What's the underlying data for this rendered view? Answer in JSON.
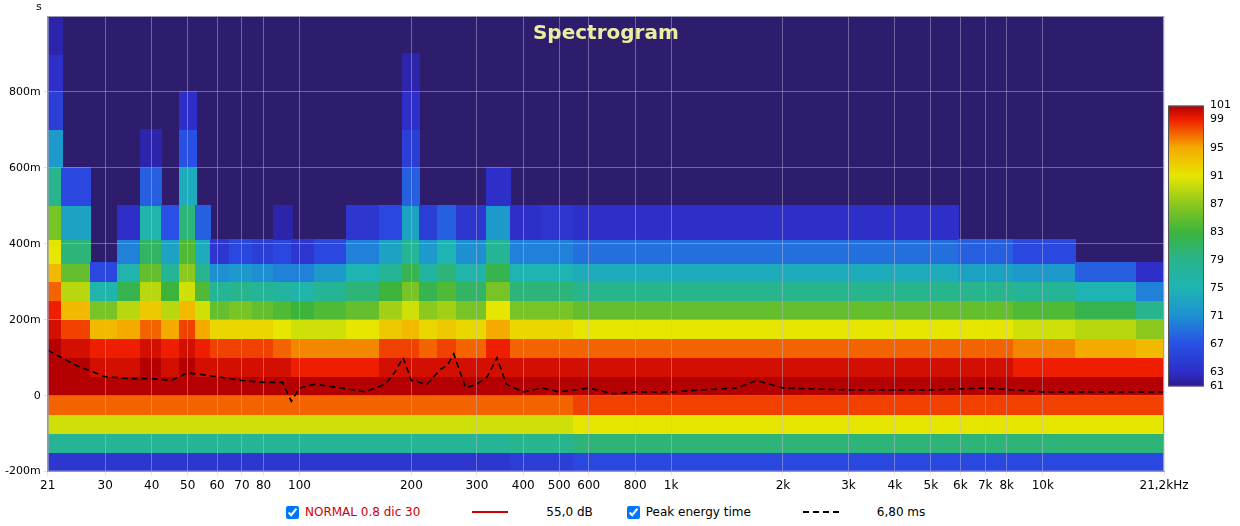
{
  "chart_data": {
    "type": "heatmap",
    "title": "Spectrogram",
    "ylabel": "s",
    "log": "x",
    "grid": true,
    "legend": "bottom",
    "xlim": [
      21,
      21200
    ],
    "xticks": [
      21,
      30,
      40,
      50,
      60,
      70,
      80,
      100,
      200,
      300,
      400,
      500,
      600,
      800,
      {
        "value": 1000,
        "label": "1k"
      },
      {
        "value": 2000,
        "label": "2k"
      },
      {
        "value": 3000,
        "label": "3k"
      },
      {
        "value": 4000,
        "label": "4k"
      },
      {
        "value": 5000,
        "label": "5k"
      },
      {
        "value": 6000,
        "label": "6k"
      },
      {
        "value": 7000,
        "label": "7k"
      },
      {
        "value": 8000,
        "label": "8k"
      },
      {
        "value": 10000,
        "label": "10k"
      },
      {
        "value": 21200,
        "label": "21,2kHz"
      }
    ],
    "ylim": [
      -0.2,
      1.0
    ],
    "yticks": [
      {
        "value": -0.2,
        "label": "-200m"
      },
      0,
      {
        "value": 0.2,
        "label": "200m"
      },
      {
        "value": 0.4,
        "label": "400m"
      },
      {
        "value": 0.6,
        "label": "600m"
      },
      {
        "value": 0.8,
        "label": "800m"
      }
    ],
    "colorbar": {
      "lim": [
        61,
        101
      ],
      "ticks": [
        61,
        63,
        67,
        71,
        75,
        79,
        83,
        87,
        91,
        95,
        99,
        101
      ]
    },
    "series": [
      {
        "name": "NORMAL 0.8 dic 30",
        "type": "heatmap",
        "color": "#cc0000",
        "line_style": "solid",
        "readout": "55,0 dB",
        "x": [
          21,
          25,
          30,
          35,
          40,
          45,
          50,
          55,
          60,
          70,
          80,
          90,
          100,
          120,
          150,
          180,
          200,
          220,
          250,
          280,
          300,
          340,
          400,
          500,
          600,
          800,
          1000,
          1500,
          2000,
          3000,
          4000,
          5000,
          7000,
          10000,
          15000,
          21200
        ],
        "y": [
          -0.175,
          -0.125,
          -0.075,
          -0.025,
          0.025,
          0.075,
          0.125,
          0.175,
          0.225,
          0.275,
          0.325,
          0.375,
          0.45,
          0.55,
          0.65,
          0.75,
          0.85,
          0.95
        ],
        "values": [
          [
            64,
            78,
            90,
            97,
            101,
            101,
            101,
            100,
            99,
            97,
            94,
            91,
            86,
            79,
            72,
            65,
            63,
            62
          ],
          [
            64,
            78,
            90,
            97,
            101,
            101,
            100,
            98,
            94,
            89,
            85,
            80,
            73,
            66,
            null,
            null,
            null,
            null
          ],
          [
            64,
            78,
            90,
            97,
            101,
            100,
            99,
            94,
            86,
            76,
            66,
            null,
            null,
            null,
            null,
            null,
            null,
            null
          ],
          [
            64,
            78,
            90,
            97,
            101,
            100,
            99,
            95,
            89,
            82,
            76,
            70,
            63,
            null,
            null,
            null,
            null,
            null
          ],
          [
            64,
            78,
            90,
            97,
            101,
            101,
            100,
            97,
            93,
            89,
            85,
            81,
            76,
            68,
            62,
            null,
            null,
            null
          ],
          [
            64,
            78,
            90,
            97,
            101,
            100,
            99,
            95,
            89,
            83,
            78,
            73,
            67,
            null,
            null,
            null,
            null,
            null
          ],
          [
            64,
            78,
            90,
            97,
            101,
            101,
            100,
            98,
            94,
            90,
            87,
            84,
            80,
            74,
            67,
            63,
            null,
            null
          ],
          [
            64,
            78,
            90,
            97,
            101,
            100,
            99,
            95,
            90,
            84,
            79,
            74,
            68,
            null,
            null,
            null,
            null,
            null
          ],
          [
            64,
            78,
            90,
            97,
            101,
            100,
            98,
            92,
            85,
            78,
            71,
            64,
            null,
            null,
            null,
            null,
            null,
            null
          ],
          [
            64,
            78,
            90,
            97,
            101,
            100,
            98,
            92,
            86,
            79,
            72,
            66,
            null,
            null,
            null,
            null,
            null,
            null
          ],
          [
            64,
            78,
            90,
            97,
            101,
            100,
            98,
            92,
            85,
            78,
            71,
            65,
            null,
            null,
            null,
            null,
            null,
            null
          ],
          [
            64,
            78,
            90,
            97,
            101,
            100,
            97,
            91,
            84,
            77,
            70,
            66,
            62,
            null,
            null,
            null,
            null,
            null
          ],
          [
            64,
            78,
            90,
            97,
            101,
            99,
            96,
            90,
            83,
            76,
            70,
            64,
            null,
            null,
            null,
            null,
            null,
            null
          ],
          [
            64,
            78,
            90,
            97,
            101,
            99,
            96,
            90,
            84,
            78,
            72,
            66,
            null,
            null,
            null,
            null,
            null,
            null
          ],
          [
            64,
            78,
            90,
            97,
            101,
            99,
            96,
            91,
            85,
            80,
            75,
            70,
            64,
            null,
            null,
            null,
            null,
            null
          ],
          [
            64,
            78,
            90,
            97,
            101,
            100,
            98,
            93,
            88,
            83,
            78,
            73,
            66,
            null,
            null,
            null,
            null,
            null
          ],
          [
            64,
            78,
            90,
            97,
            101,
            100,
            98,
            94,
            90,
            86,
            82,
            78,
            73,
            68,
            65,
            63,
            62,
            null
          ],
          [
            64,
            78,
            90,
            97,
            101,
            100,
            97,
            92,
            87,
            82,
            77,
            72,
            65,
            null,
            null,
            null,
            null,
            null
          ],
          [
            64,
            78,
            90,
            97,
            101,
            100,
            98,
            93,
            88,
            84,
            80,
            75,
            68,
            null,
            null,
            null,
            null,
            null
          ],
          [
            64,
            78,
            90,
            97,
            101,
            100,
            97,
            92,
            86,
            81,
            76,
            71,
            64,
            null,
            null,
            null,
            null,
            null
          ],
          [
            64,
            78,
            90,
            97,
            101,
            100,
            97,
            92,
            86,
            81,
            76,
            71,
            64,
            null,
            null,
            null,
            null,
            null
          ],
          [
            64,
            78,
            90,
            97,
            101,
            100,
            99,
            95,
            91,
            86,
            82,
            78,
            72,
            63,
            null,
            null,
            null,
            null
          ],
          [
            65,
            79,
            90,
            97,
            101,
            100,
            97,
            92,
            86,
            80,
            75,
            70,
            63,
            null,
            null,
            null,
            null,
            null
          ],
          [
            65,
            79,
            90,
            97,
            101,
            100,
            97,
            92,
            86,
            80,
            75,
            70,
            64,
            null,
            null,
            null,
            null,
            null
          ],
          [
            66,
            80,
            91,
            98,
            101,
            100,
            97,
            91,
            85,
            79,
            74,
            69,
            63,
            null,
            null,
            null,
            null,
            null
          ],
          [
            66,
            80,
            91,
            98,
            101,
            100,
            97,
            91,
            85,
            79,
            74,
            69,
            63,
            null,
            null,
            null,
            null,
            null
          ],
          [
            66,
            80,
            91,
            98,
            101,
            100,
            97,
            91,
            85,
            79,
            74,
            69,
            63,
            null,
            null,
            null,
            null,
            null
          ],
          [
            66,
            80,
            91,
            98,
            101,
            100,
            97,
            91,
            85,
            79,
            74,
            69,
            63,
            null,
            null,
            null,
            null,
            null
          ],
          [
            66,
            80,
            91,
            98,
            101,
            100,
            97,
            91,
            85,
            79,
            74,
            69,
            63,
            null,
            null,
            null,
            null,
            null
          ],
          [
            66,
            80,
            91,
            98,
            101,
            100,
            97,
            91,
            85,
            79,
            74,
            69,
            63,
            null,
            null,
            null,
            null,
            null
          ],
          [
            66,
            80,
            91,
            98,
            101,
            100,
            97,
            91,
            85,
            79,
            74,
            69,
            63,
            null,
            null,
            null,
            null,
            null
          ],
          [
            66,
            80,
            91,
            98,
            101,
            100,
            97,
            91,
            85,
            79,
            74,
            69,
            63,
            null,
            null,
            null,
            null,
            null
          ],
          [
            66,
            80,
            91,
            98,
            101,
            100,
            97,
            91,
            85,
            79,
            73,
            68,
            null,
            null,
            null,
            null,
            null,
            null
          ],
          [
            66,
            80,
            91,
            98,
            101,
            99,
            96,
            90,
            84,
            78,
            72,
            66,
            null,
            null,
            null,
            null,
            null,
            null
          ],
          [
            66,
            80,
            91,
            98,
            101,
            99,
            95,
            89,
            82,
            75,
            68,
            null,
            null,
            null,
            null,
            null,
            null,
            null
          ],
          [
            66,
            80,
            91,
            98,
            101,
            99,
            94,
            87,
            79,
            70,
            63,
            null,
            null,
            null,
            null,
            null,
            null,
            null
          ]
        ]
      },
      {
        "name": "Peak energy time",
        "type": "line",
        "color": "#000000",
        "line_style": "dashed",
        "readout": "6,80 ms",
        "x": [
          21,
          25,
          30,
          35,
          40,
          45,
          50,
          55,
          60,
          70,
          80,
          90,
          95,
          100,
          110,
          130,
          150,
          170,
          180,
          190,
          200,
          220,
          240,
          250,
          260,
          280,
          300,
          320,
          340,
          360,
          400,
          450,
          500,
          600,
          700,
          800,
          1000,
          1200,
          1500,
          1700,
          2000,
          3000,
          5000,
          7000,
          10000,
          15000,
          21200
        ],
        "values": [
          0.12,
          0.08,
          0.05,
          0.045,
          0.045,
          0.04,
          0.06,
          0.055,
          0.05,
          0.04,
          0.035,
          0.035,
          -0.015,
          0.02,
          0.03,
          0.02,
          0.01,
          0.03,
          0.06,
          0.1,
          0.04,
          0.03,
          0.07,
          0.08,
          0.11,
          0.02,
          0.03,
          0.05,
          0.1,
          0.03,
          0.01,
          0.02,
          0.01,
          0.02,
          0.005,
          0.01,
          0.01,
          0.015,
          0.02,
          0.04,
          0.02,
          0.015,
          0.015,
          0.02,
          0.01,
          0.01,
          0.01
        ]
      }
    ]
  }
}
